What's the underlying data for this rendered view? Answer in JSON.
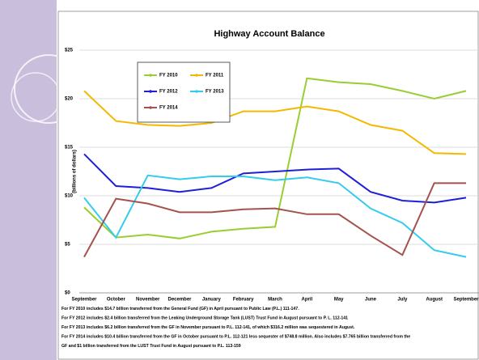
{
  "chart_data": {
    "type": "line",
    "title": "Highway Account Balance",
    "y_label": "(billions of dollars)",
    "categories": [
      "September",
      "October",
      "November",
      "December",
      "January",
      "February",
      "March",
      "April",
      "May",
      "June",
      "July",
      "August",
      "September"
    ],
    "series": [
      {
        "name": "FY 2010",
        "color": "#9acd32",
        "values": [
          8.8,
          5.7,
          6.0,
          5.6,
          6.3,
          6.6,
          6.8,
          22.1,
          21.7,
          21.5,
          20.8,
          20.0,
          20.8
        ]
      },
      {
        "name": "FY 2011",
        "color": "#f5b800",
        "values": [
          20.8,
          17.7,
          17.3,
          17.2,
          17.5,
          18.7,
          18.7,
          19.2,
          18.7,
          17.3,
          16.7,
          14.4,
          14.3
        ]
      },
      {
        "name": "FY 2012",
        "color": "#1f1fd6",
        "values": [
          14.3,
          11.0,
          10.8,
          10.4,
          10.8,
          12.3,
          12.5,
          12.7,
          12.8,
          10.4,
          9.5,
          9.3,
          9.8
        ]
      },
      {
        "name": "FY 2013",
        "color": "#33ccee",
        "values": [
          9.8,
          5.7,
          12.1,
          11.7,
          12.0,
          12.0,
          11.6,
          11.9,
          11.3,
          8.7,
          7.2,
          4.4,
          3.7
        ]
      },
      {
        "name": "FY 2014",
        "color": "#a5524c",
        "values": [
          3.7,
          9.7,
          9.2,
          8.3,
          8.3,
          8.6,
          8.7,
          8.1,
          8.1,
          5.9,
          3.9,
          11.3,
          11.3
        ]
      }
    ],
    "ylim": [
      0,
      25
    ],
    "yticks": [
      {
        "value": 0,
        "label": "$0"
      },
      {
        "value": 5,
        "label": "$5"
      },
      {
        "value": 10,
        "label": "$10"
      },
      {
        "value": 15,
        "label": "$15"
      },
      {
        "value": 20,
        "label": "$20"
      },
      {
        "value": 25,
        "label": "$25"
      }
    ],
    "grid": true,
    "notes": [
      "For FY 2010 includes $14.7 billion transferred from the General Fund (GF) in April pursuant to Public Law (P.L.) 111-147.",
      "For FY 2012 includes $2.4 billion transferred from the Leaking Underground Storage Tank (LUST) Trust Fund in August pursuant to P. L. 112-141",
      "For FY 2013 includes $6.2 billion transferred from the GF in November pursuant to P.L. 112-141, of which $316.2 million was sequestered in August.",
      "For FY 2014 includes $10.4 billion transferred from the GF in October pursuant to P.L. 112-121 less sequester of $748.8 million. Also includes $7.765 billion transferred from the",
      "GF and $1 billion transferred from the LUST Trust Fund in August pursuant to P.L. 113-159"
    ]
  }
}
